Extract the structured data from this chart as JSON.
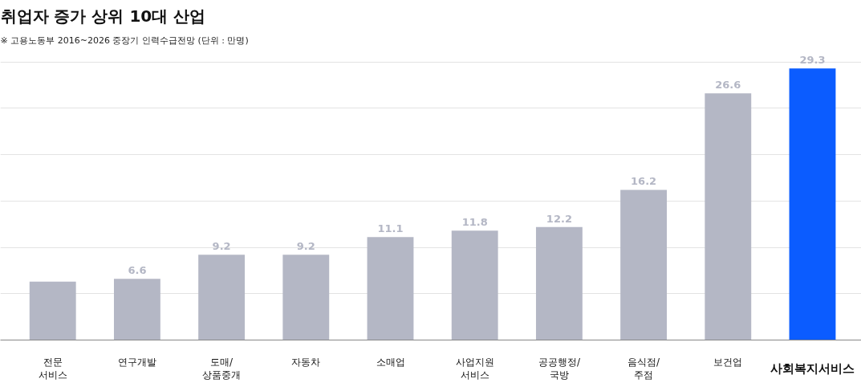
{
  "chart_data": {
    "type": "bar",
    "title": "취업자 증가 상위 10대 산업",
    "subtitle": "※ 고용노동부 2016~2026 중장기 인력수급전망 (단위 : 만명)",
    "categories": [
      "전문\n서비스",
      "연구개발",
      "도매/\n상품중개",
      "자동차",
      "소매업",
      "사업지원\n서비스",
      "공공행정/\n국방",
      "음식점/\n주점",
      "보건업",
      "사회복지서비스"
    ],
    "values": [
      6.3,
      6.6,
      9.2,
      9.2,
      11.1,
      11.8,
      12.2,
      16.2,
      26.6,
      29.3
    ],
    "value_labels": [
      null,
      "6.6",
      "9.2",
      "9.2",
      "11.1",
      "11.8",
      "12.2",
      "16.2",
      "26.6",
      "29.3"
    ],
    "colors": [
      "#b4b7c5",
      "#b4b7c5",
      "#b4b7c5",
      "#b4b7c5",
      "#b4b7c5",
      "#b4b7c5",
      "#b4b7c5",
      "#b4b7c5",
      "#b4b7c5",
      "#0b5cff"
    ],
    "yticks": [
      {
        "value": 0,
        "label": null
      },
      {
        "value": 5,
        "label": null
      },
      {
        "value": 10,
        "label": null
      },
      {
        "value": 15,
        "label": null
      },
      {
        "value": 20,
        "label": null
      },
      {
        "value": 25,
        "label": null
      },
      {
        "value": 30,
        "label": null
      }
    ],
    "grid": "y",
    "tick_labels": false
  }
}
